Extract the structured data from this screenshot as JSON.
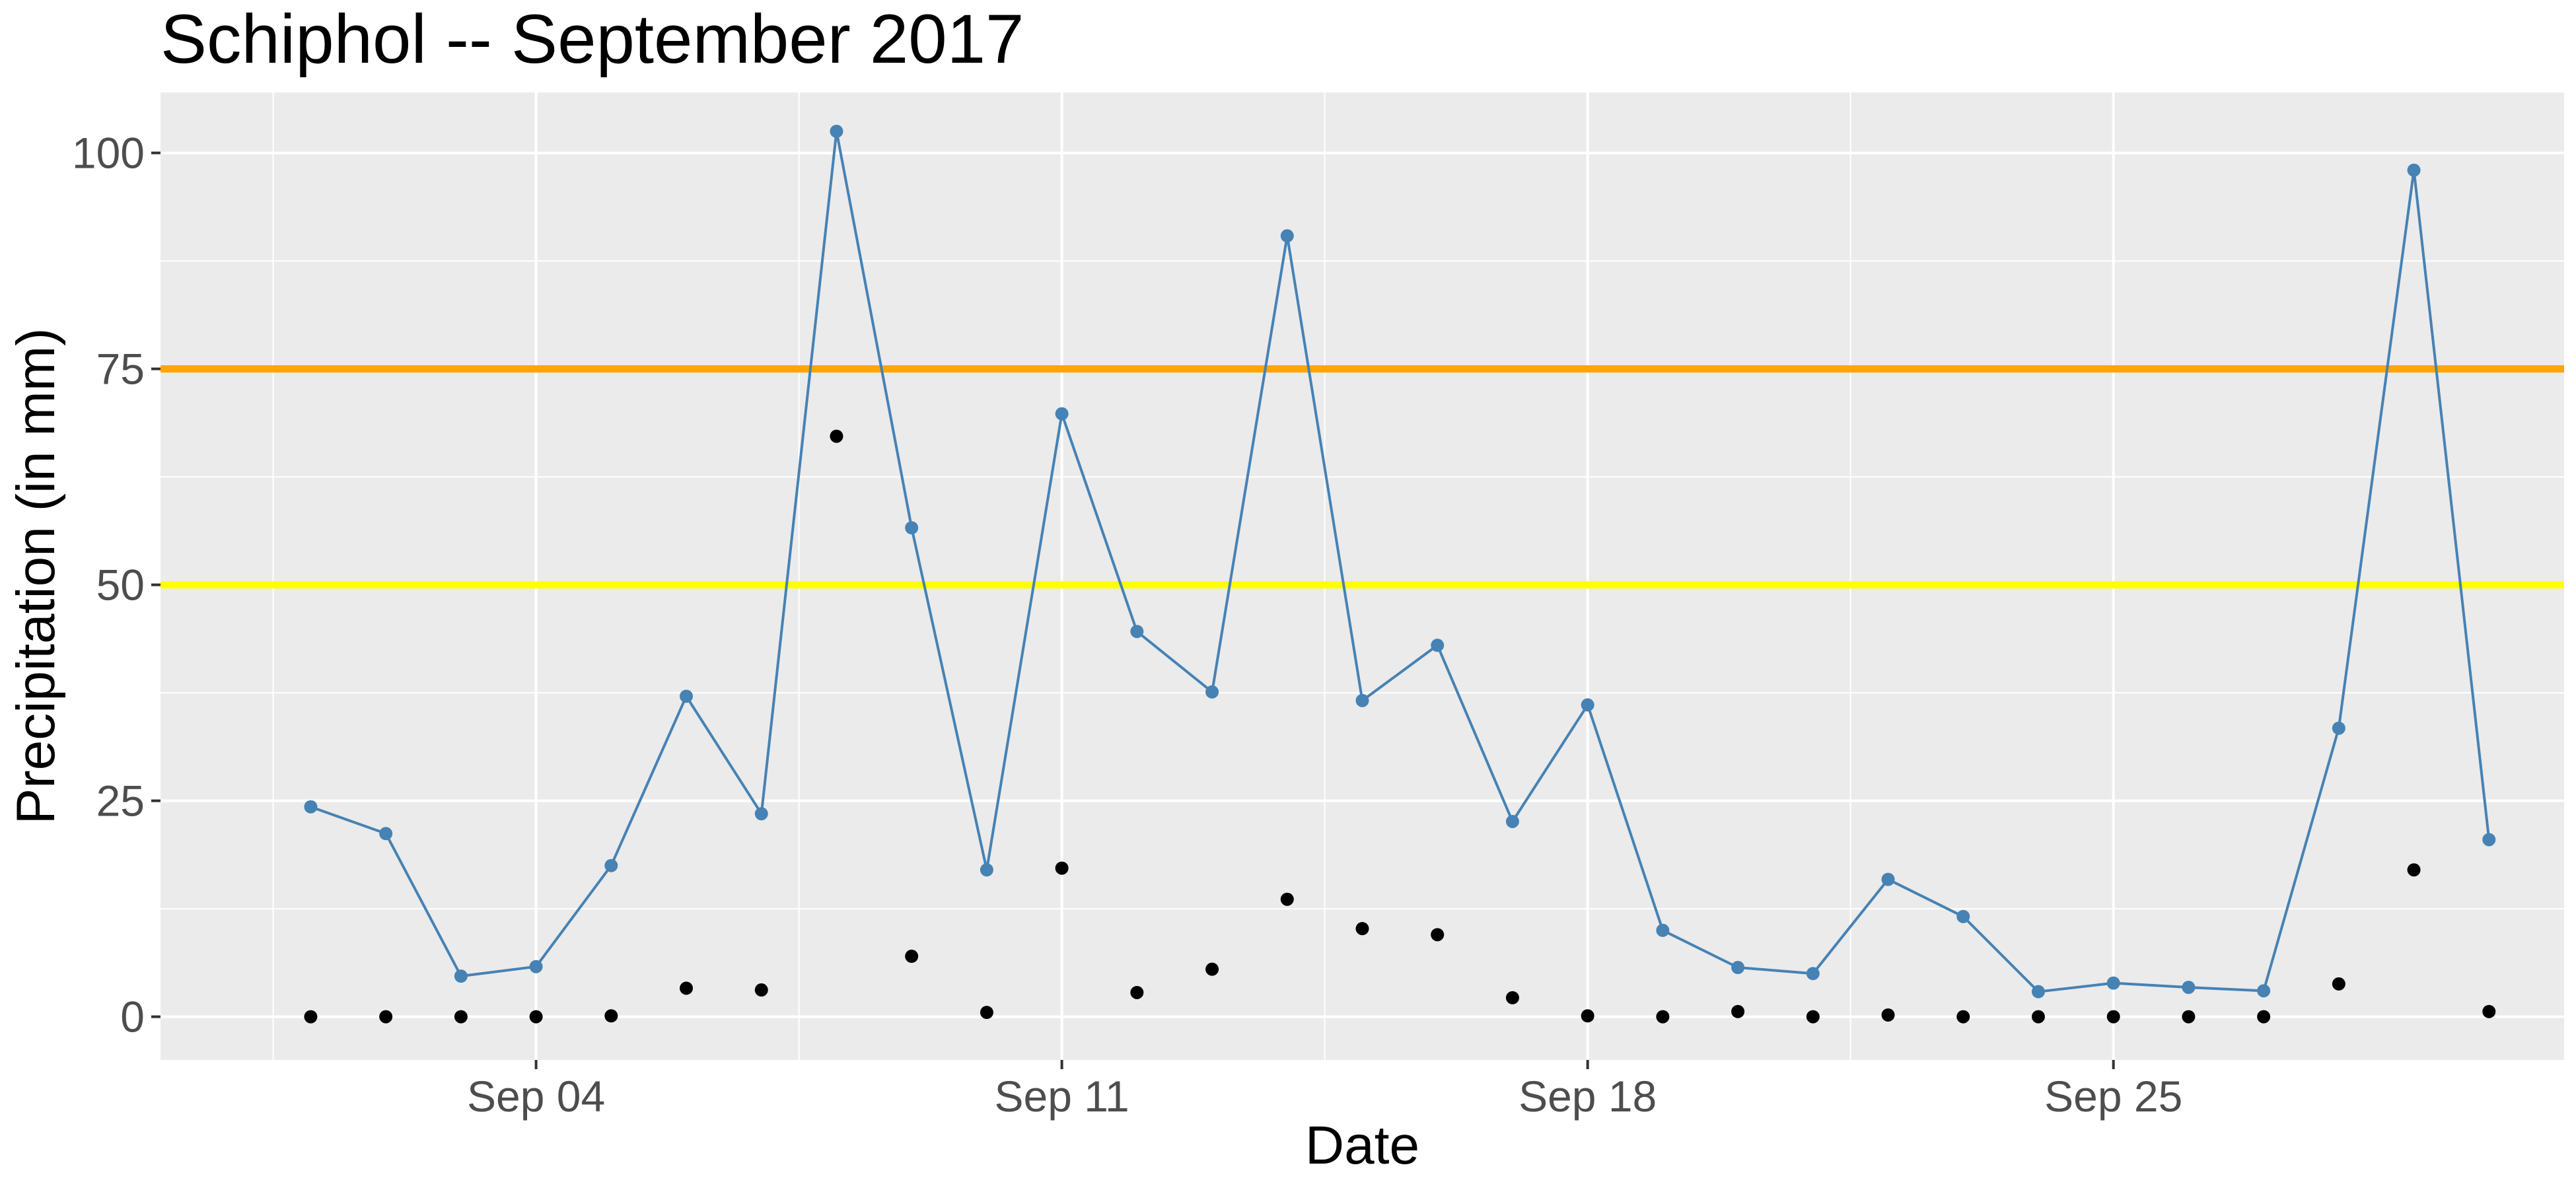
{
  "chart_data": {
    "type": "line",
    "title": "Schiphol -- September 2017",
    "xlabel": "Date",
    "ylabel": "Precipitation (in mm)",
    "x_tick_labels": [
      "Sep 04",
      "Sep 11",
      "Sep 18",
      "Sep 25"
    ],
    "x_tick_dates": [
      "2017-09-04",
      "2017-09-11",
      "2017-09-18",
      "2017-09-25"
    ],
    "y_ticks": [
      0,
      25,
      50,
      75,
      100
    ],
    "xlim": [
      "2017-08-30",
      "2017-10-01"
    ],
    "ylim": [
      -5,
      107
    ],
    "grid": true,
    "x": [
      "2017-09-01",
      "2017-09-02",
      "2017-09-03",
      "2017-09-04",
      "2017-09-05",
      "2017-09-06",
      "2017-09-07",
      "2017-09-08",
      "2017-09-09",
      "2017-09-10",
      "2017-09-11",
      "2017-09-12",
      "2017-09-13",
      "2017-09-14",
      "2017-09-15",
      "2017-09-16",
      "2017-09-17",
      "2017-09-18",
      "2017-09-19",
      "2017-09-20",
      "2017-09-21",
      "2017-09-22",
      "2017-09-23",
      "2017-09-24",
      "2017-09-25",
      "2017-09-26",
      "2017-09-27",
      "2017-09-28",
      "2017-09-29",
      "2017-09-30"
    ],
    "series": [
      {
        "style": "line+points",
        "color": "#4682b4",
        "values": [
          24.3,
          21.2,
          4.7,
          5.8,
          17.5,
          37.1,
          23.5,
          102.5,
          56.6,
          17.0,
          69.8,
          44.6,
          37.6,
          90.4,
          36.6,
          43.0,
          22.6,
          36.1,
          10.0,
          5.7,
          5.0,
          15.9,
          11.6,
          2.9,
          3.9,
          3.4,
          3.0,
          33.4,
          98.0,
          20.5
        ]
      },
      {
        "style": "points",
        "color": "#000000",
        "values": [
          0.0,
          0.0,
          0.0,
          0.0,
          0.1,
          3.3,
          3.1,
          67.2,
          7.0,
          0.5,
          17.2,
          2.8,
          5.5,
          13.6,
          10.2,
          9.5,
          2.2,
          0.1,
          0.0,
          0.6,
          0.0,
          0.2,
          0.0,
          0.0,
          0.0,
          0.0,
          0.0,
          3.8,
          17.0,
          0.6
        ]
      }
    ],
    "reference_lines": [
      {
        "y": 75,
        "color": "#ffa500"
      },
      {
        "y": 50,
        "color": "#ffff00"
      }
    ]
  }
}
